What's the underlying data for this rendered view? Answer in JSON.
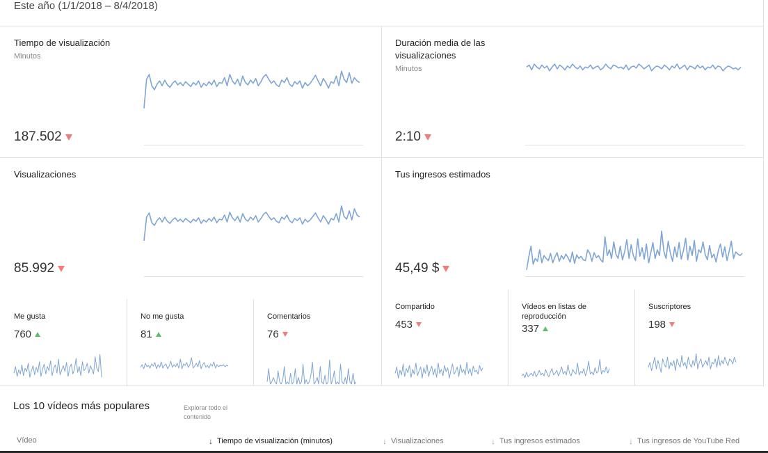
{
  "header": {
    "period": "Este año (1/1/2018 – 8/4/2018)"
  },
  "metrics": {
    "watch_time": {
      "title": "Tiempo de visualización",
      "unit": "Minutos",
      "value": "187.502",
      "trend": "down",
      "series": [
        2,
        38,
        44,
        30,
        25,
        32,
        36,
        30,
        37,
        31,
        28,
        33,
        36,
        31,
        34,
        30,
        35,
        32,
        29,
        34,
        31,
        36,
        28,
        33,
        30,
        35,
        31,
        37,
        29,
        34,
        33,
        40,
        30,
        44,
        36,
        32,
        38,
        30,
        42,
        34,
        31,
        37,
        33,
        39,
        30,
        35,
        41,
        44,
        38,
        33,
        36,
        31,
        29,
        37,
        34,
        40,
        32,
        29,
        35,
        32,
        36,
        27,
        34,
        30,
        33,
        38,
        43,
        36,
        30,
        39,
        34,
        27,
        35,
        33,
        42,
        30,
        48,
        38,
        34,
        46,
        33,
        40,
        36,
        34
      ]
    },
    "avg_duration": {
      "title": "Duración media de las visualizaciones",
      "unit": "Minutos",
      "value": "2:10",
      "trend": "down",
      "series": [
        50,
        52,
        47,
        53,
        50,
        48,
        52,
        49,
        51,
        46,
        50,
        53,
        48,
        52,
        50,
        47,
        51,
        49,
        53,
        50,
        48,
        51,
        47,
        50,
        49,
        52,
        48,
        50,
        51,
        47,
        49,
        53,
        50,
        48,
        52,
        51,
        49,
        50,
        48,
        52,
        47,
        50,
        51,
        49,
        53,
        51,
        48,
        50,
        52,
        46,
        49,
        51,
        50,
        48,
        52,
        50,
        47,
        51,
        49,
        53,
        48,
        50,
        52,
        47,
        51,
        50,
        48,
        52,
        49,
        51,
        47,
        50,
        49,
        52,
        48,
        51,
        50,
        46,
        49,
        51,
        50,
        48,
        49,
        47,
        50
      ]
    },
    "views": {
      "title": "Visualizaciones",
      "value": "85.992",
      "trend": "down",
      "series": [
        2,
        36,
        42,
        28,
        24,
        31,
        35,
        29,
        36,
        30,
        27,
        32,
        35,
        30,
        33,
        29,
        34,
        31,
        28,
        33,
        30,
        35,
        27,
        32,
        29,
        34,
        30,
        36,
        28,
        33,
        32,
        39,
        29,
        43,
        35,
        31,
        37,
        29,
        41,
        33,
        30,
        36,
        32,
        38,
        29,
        34,
        40,
        43,
        37,
        32,
        35,
        30,
        28,
        36,
        33,
        39,
        31,
        28,
        34,
        31,
        35,
        26,
        33,
        29,
        32,
        37,
        42,
        35,
        29,
        38,
        33,
        26,
        34,
        32,
        41,
        29,
        52,
        37,
        33,
        45,
        32,
        48,
        39,
        36
      ]
    },
    "revenue": {
      "title": "Tus ingresos estimados",
      "value": "45,49 $",
      "trend": "down",
      "series": [
        2,
        20,
        35,
        10,
        18,
        14,
        30,
        12,
        22,
        18,
        15,
        25,
        12,
        20,
        26,
        14,
        22,
        17,
        24,
        19,
        13,
        27,
        11,
        23,
        18,
        21,
        16,
        15,
        30,
        25,
        14,
        26,
        19,
        22,
        16,
        13,
        48,
        22,
        30,
        18,
        41,
        24,
        18,
        35,
        16,
        27,
        44,
        18,
        37,
        22,
        15,
        45,
        21,
        33,
        17,
        38,
        12,
        26,
        40,
        18,
        30,
        22,
        56,
        28,
        18,
        42,
        25,
        14,
        34,
        20,
        40,
        17,
        29,
        46,
        16,
        35,
        22,
        43,
        14,
        30,
        26,
        41,
        23,
        16,
        36,
        19,
        24,
        13,
        29,
        38,
        20,
        34,
        15,
        28,
        42,
        18,
        27,
        24,
        22,
        25
      ]
    }
  },
  "small_metrics": [
    {
      "key": "likes",
      "title": "Me gusta",
      "value": "760",
      "trend": "up",
      "series": [
        10,
        18,
        6,
        14,
        9,
        20,
        7,
        16,
        12,
        22,
        5,
        13,
        19,
        8,
        17,
        11,
        24,
        6,
        15,
        21,
        9,
        18,
        13,
        25,
        7,
        16,
        20,
        10,
        27,
        8,
        14,
        19,
        12,
        23,
        6,
        17,
        21,
        9,
        15,
        28,
        11,
        18,
        7,
        24,
        13,
        16,
        22,
        10,
        19,
        14,
        9,
        30,
        16,
        12,
        33,
        5
      ]
    },
    {
      "key": "dislikes",
      "title": "No me gusta",
      "value": "81",
      "trend": "up",
      "series": [
        14,
        18,
        12,
        20,
        15,
        17,
        13,
        19,
        16,
        21,
        12,
        18,
        14,
        22,
        13,
        17,
        19,
        12,
        16,
        23,
        14,
        18,
        15,
        20,
        13,
        26,
        12,
        19,
        17,
        21,
        14,
        18,
        28,
        13,
        16,
        20,
        15,
        24,
        12,
        18,
        21,
        14,
        17,
        13,
        19,
        16,
        22,
        13,
        18,
        15,
        17,
        16,
        18,
        15,
        17,
        16
      ]
    },
    {
      "key": "comments",
      "title": "Comentarios",
      "value": "76",
      "trend": "down",
      "series": [
        2,
        14,
        0,
        2,
        6,
        2,
        0,
        12,
        2,
        0,
        4,
        16,
        0,
        2,
        0,
        10,
        0,
        2,
        14,
        0,
        6,
        0,
        2,
        18,
        0,
        4,
        0,
        2,
        8,
        20,
        0,
        2,
        6,
        0,
        16,
        2,
        0,
        8,
        0,
        2,
        22,
        0,
        4,
        12,
        0,
        2,
        0,
        18,
        2,
        0,
        6,
        0,
        14,
        2,
        0,
        10,
        0,
        2
      ]
    },
    {
      "key": "shares",
      "title": "Compartido",
      "value": "453",
      "trend": "down",
      "series": [
        14,
        22,
        8,
        18,
        12,
        26,
        10,
        20,
        15,
        24,
        9,
        19,
        13,
        27,
        11,
        17,
        22,
        8,
        21,
        14,
        25,
        10,
        18,
        23,
        12,
        20,
        9,
        27,
        14,
        19,
        11,
        24,
        16,
        21,
        8,
        18,
        26,
        13,
        17,
        22,
        10,
        25,
        15,
        19,
        12,
        28,
        14,
        20,
        11,
        23,
        16,
        18,
        13,
        24,
        17,
        21
      ]
    },
    {
      "key": "playlists",
      "title": "Vídeos en listas de reproducción",
      "value": "337",
      "trend": "up",
      "series": [
        10,
        12,
        8,
        14,
        9,
        11,
        13,
        10,
        15,
        9,
        12,
        16,
        11,
        13,
        10,
        17,
        12,
        9,
        14,
        18,
        11,
        13,
        16,
        10,
        14,
        20,
        12,
        15,
        11,
        22,
        13,
        10,
        17,
        14,
        12,
        24,
        11,
        15,
        13,
        18,
        10,
        16,
        26,
        12,
        14,
        11,
        19,
        13,
        15,
        28,
        12,
        16,
        14,
        20,
        13,
        18
      ]
    },
    {
      "key": "subscribers",
      "title": "Suscriptores",
      "value": "198",
      "trend": "down",
      "series": [
        18,
        24,
        14,
        22,
        30,
        16,
        26,
        20,
        12,
        28,
        22,
        18,
        30,
        16,
        24,
        20,
        26,
        14,
        28,
        22,
        18,
        32,
        20,
        24,
        16,
        30,
        22,
        18,
        26,
        20,
        34,
        16,
        24,
        28,
        18,
        22,
        26,
        20,
        30,
        16,
        24,
        22,
        28,
        18,
        32,
        20,
        26,
        22,
        30,
        24,
        20,
        28,
        26,
        22,
        30,
        24
      ]
    }
  ],
  "popular": {
    "title": "Los 10 vídeos más populares",
    "explore_link": "Explorar todo el contenido",
    "columns": {
      "video": "Vídeo",
      "watch_time": "Tiempo de visualización (minutos)",
      "views": "Visualizaciones",
      "revenue": "Tus ingresos estimados",
      "red_revenue": "Tus ingresos de YouTube Red"
    }
  },
  "colors": {
    "sparkline": "#7ea5d4",
    "down": "#f07c7c",
    "up": "#66bb6a",
    "divider": "#e0e0e0"
  }
}
